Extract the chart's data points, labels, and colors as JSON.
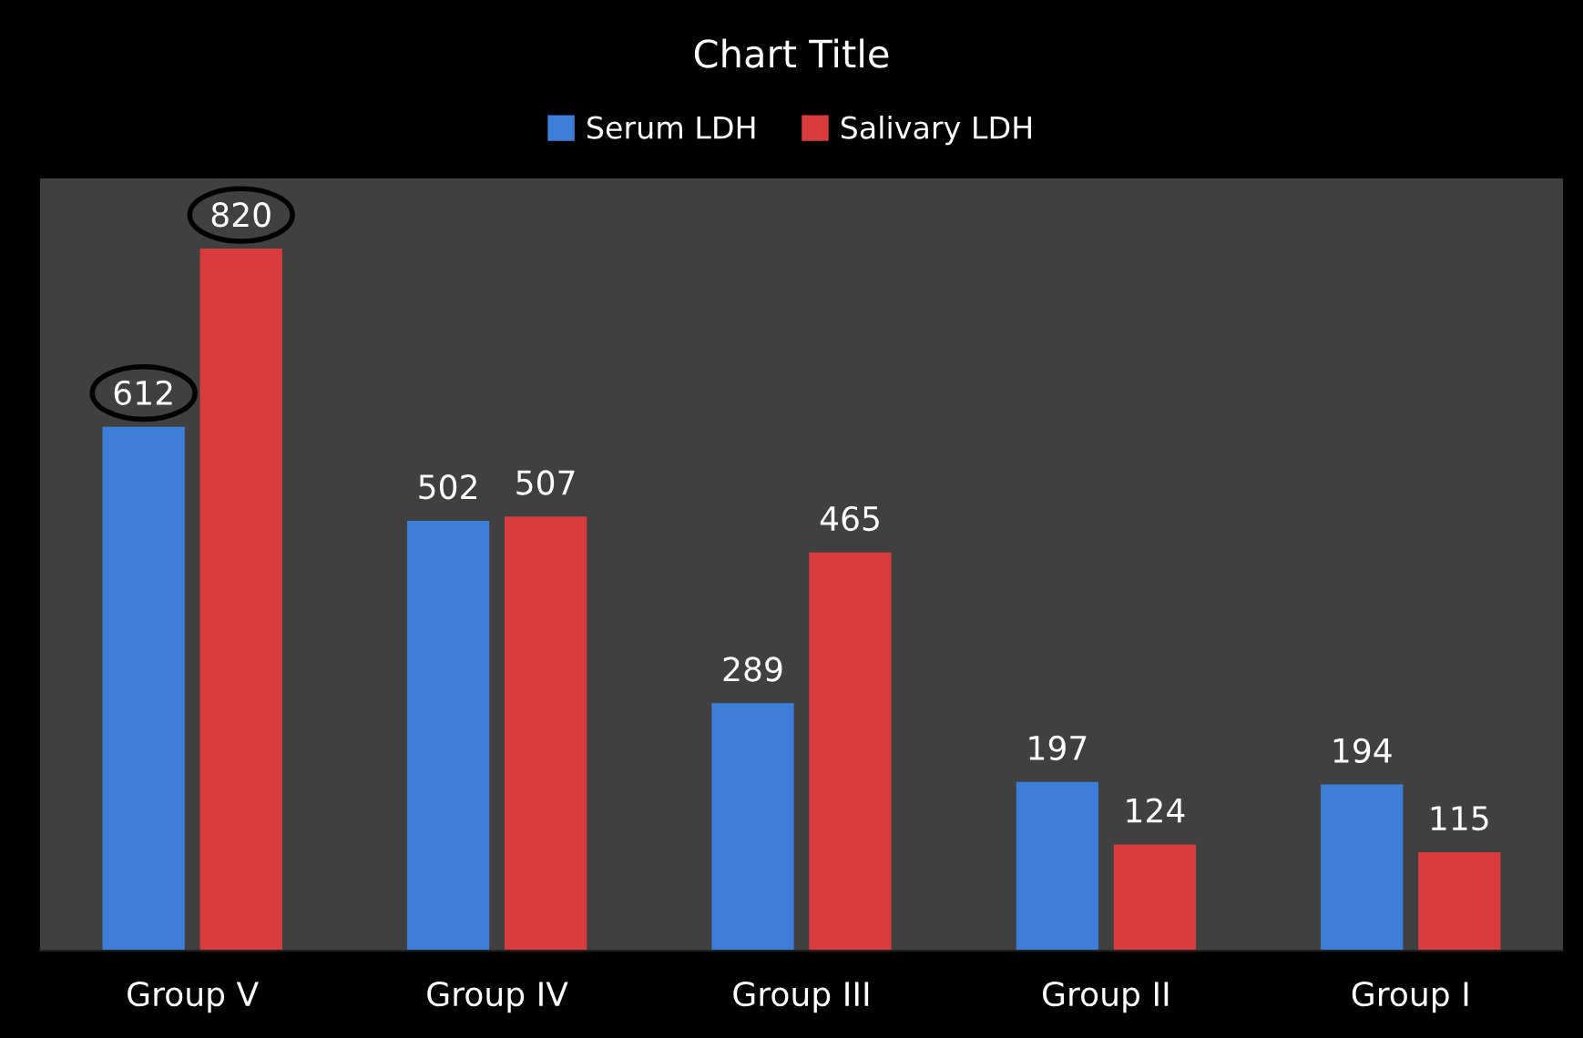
{
  "chart_data": {
    "type": "bar",
    "title": "Chart Title",
    "categories": [
      "Group V",
      "Group IV",
      "Group III",
      "Group II",
      "Group I"
    ],
    "series": [
      {
        "name": "Serum LDH",
        "color": "#3d7fd8",
        "values": [
          612,
          502,
          289,
          197,
          194
        ]
      },
      {
        "name": "Salivary LDH",
        "color": "#d83c3c",
        "values": [
          820,
          507,
          465,
          124,
          115
        ]
      }
    ],
    "data_labels": true,
    "legend": "top",
    "grid": false
  }
}
